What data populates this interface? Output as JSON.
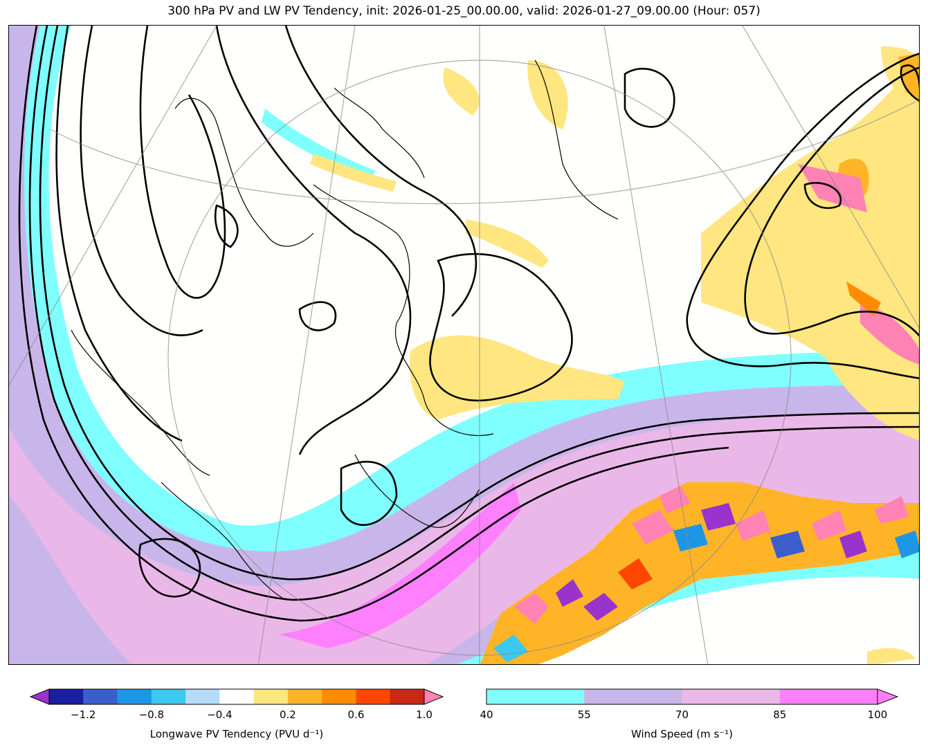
{
  "title": "300 hPa PV and LW PV Tendency, init: 2026-01-25_00.00.00, valid: 2026-01-27_09.00.00 (Hour: 057)",
  "colors": {
    "wind": [
      "#80ffff",
      "#c8b6ea",
      "#eab8e8",
      "#ff80ff"
    ],
    "tendency": [
      "#9933cc",
      "#1a1ea0",
      "#3a5fcd",
      "#1e96e6",
      "#3cc8f0",
      "#b4dcfa",
      "#ffffff",
      "#ffe680",
      "#ffb428",
      "#ff8c00",
      "#ff4600",
      "#c82814",
      "#ff82b4"
    ],
    "contour": "#000000",
    "coastline": "#000000",
    "gridline": "#888888"
  },
  "pv_colorbar": {
    "label": "Longwave PV Tendency (PVU d⁻¹)",
    "ticks": [
      "−1.2",
      "−0.8",
      "−0.4",
      "0.2",
      "0.6",
      "1.0"
    ]
  },
  "wind_colorbar": {
    "label": "Wind Speed (m s⁻¹)",
    "ticks": [
      "40",
      "55",
      "70",
      "85",
      "100"
    ]
  }
}
